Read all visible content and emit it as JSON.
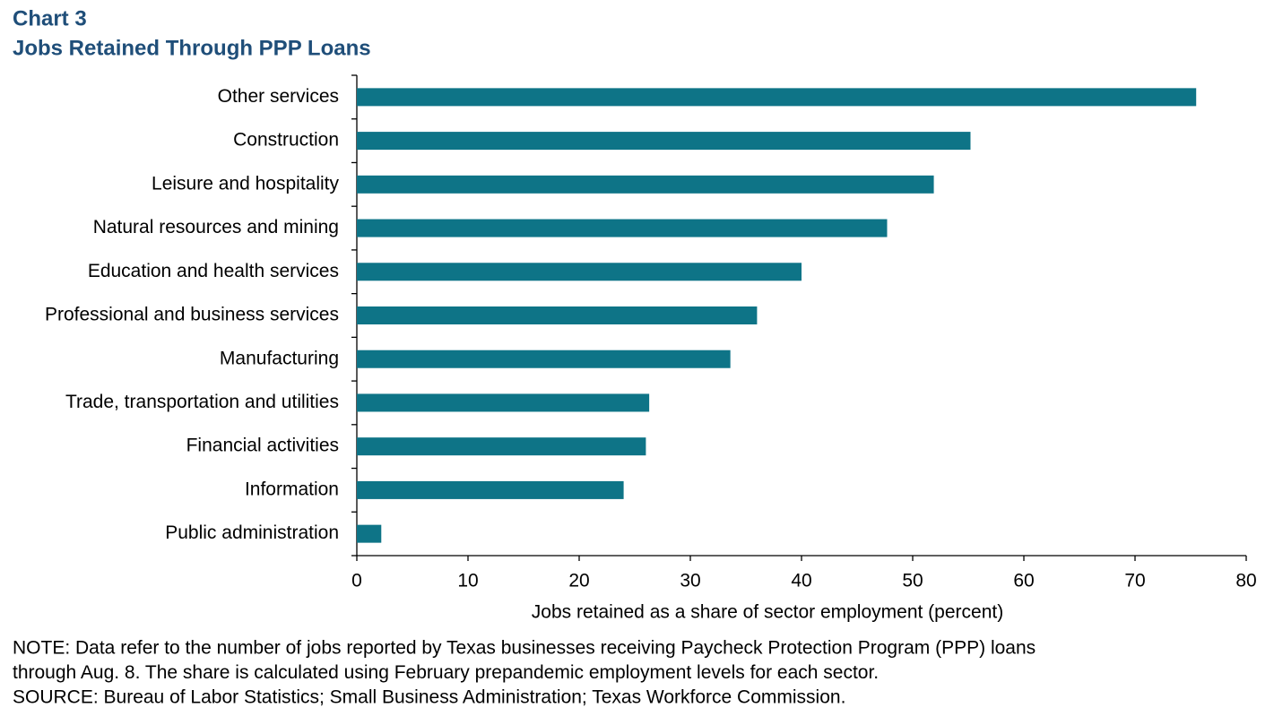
{
  "chart_data": {
    "type": "hbar",
    "title": "Chart 3",
    "subtitle": "Jobs Retained Through PPP Loans",
    "categories": [
      "Other services",
      "Construction",
      "Leisure and hospitality",
      "Natural resources and mining",
      "Education and health services",
      "Professional and business services",
      "Manufacturing",
      "Trade, transportation and utilities",
      "Financial activities",
      "Information",
      "Public administration"
    ],
    "values": [
      75.5,
      55.2,
      51.9,
      47.7,
      40.0,
      36.0,
      33.6,
      26.3,
      26.0,
      24.0,
      2.2
    ],
    "color": "#0e7487",
    "xlim": [
      0,
      80
    ],
    "xticks": [
      0,
      10,
      20,
      30,
      40,
      50,
      60,
      70,
      80
    ],
    "xlabel": "Jobs retained as a share of sector employment (percent)",
    "notes": [
      "NOTE: Data refer to the number of jobs reported by Texas businesses receiving Paycheck Protection Program (PPP) loans",
      "through Aug. 8. The share is calculated using February prepandemic employment levels for each sector.",
      "SOURCE: Bureau of Labor Statistics; Small Business Administration; Texas Workforce Commission."
    ]
  }
}
